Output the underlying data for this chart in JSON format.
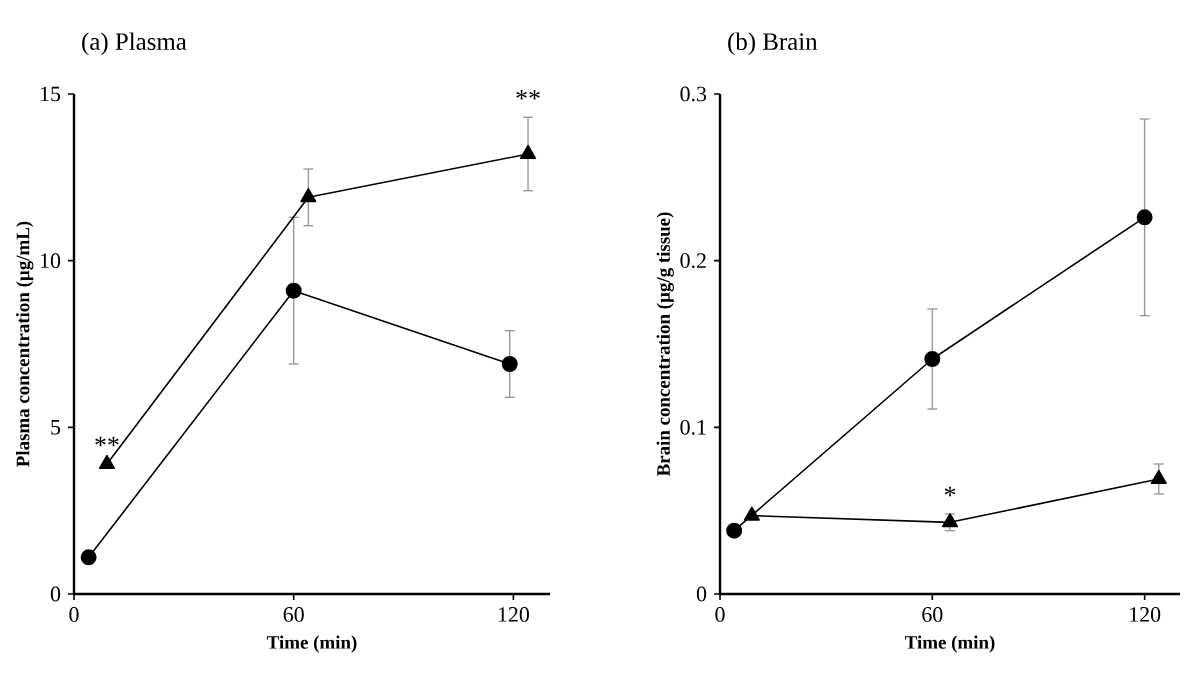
{
  "chart_data": [
    {
      "type": "line",
      "title": "(a)  Plasma",
      "xlabel": "Time (min)",
      "ylabel": "Plasma concentration (µg/mL)",
      "xlim": [
        0,
        130
      ],
      "xticks": [
        0,
        60,
        120
      ],
      "ylim": [
        0,
        15
      ],
      "yticks": [
        0,
        5,
        10,
        15
      ],
      "series": [
        {
          "color": "#000000",
          "marker": "circle",
          "x": [
            4,
            60,
            119
          ],
          "values": [
            1.1,
            9.1,
            6.9
          ],
          "errors": [
            null,
            2.2,
            1.0
          ]
        },
        {
          "color": "#000000",
          "marker": "triangle",
          "x": [
            9,
            64,
            124
          ],
          "values": [
            3.9,
            11.9,
            13.2
          ],
          "errors": [
            null,
            0.85,
            1.1
          ]
        }
      ],
      "annotations": [
        {
          "text": "**",
          "x": 9,
          "y": 3.9
        },
        {
          "text": "**",
          "x": 124,
          "y": 14.3
        }
      ]
    },
    {
      "type": "line",
      "title": "(b)  Brain",
      "xlabel": "Time (min)",
      "ylabel": "Brain concentration (µg/g tissue)",
      "xlim": [
        0,
        130
      ],
      "xticks": [
        0,
        60,
        120
      ],
      "ylim": [
        0,
        0.3
      ],
      "yticks": [
        0,
        0.1,
        0.2,
        0.3
      ],
      "series": [
        {
          "color": "#000000",
          "marker": "circle",
          "x": [
            4,
            60,
            120
          ],
          "values": [
            0.038,
            0.141,
            0.226
          ],
          "errors": [
            null,
            0.03,
            0.059
          ]
        },
        {
          "color": "#000000",
          "marker": "triangle",
          "x": [
            9,
            65,
            124
          ],
          "values": [
            0.047,
            0.043,
            0.069
          ],
          "errors": [
            null,
            0.005,
            0.009
          ]
        }
      ],
      "annotations": [
        {
          "text": "*",
          "x": 65,
          "y": 0.048
        }
      ]
    }
  ]
}
